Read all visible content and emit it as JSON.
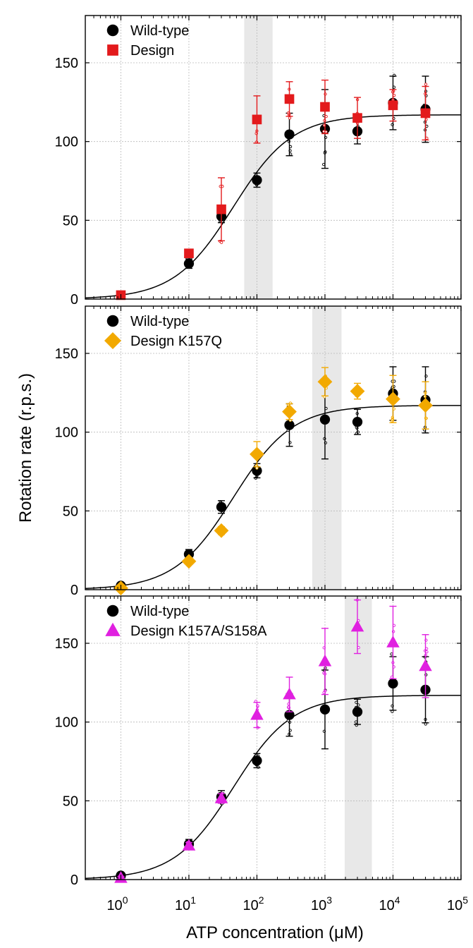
{
  "chart_data": {
    "type": "scatter",
    "xlabel": "ATP concentration (μM)",
    "xscale": "log",
    "xlim": [
      0.3,
      100000
    ],
    "x_tick_labels": [
      {
        "base": "10",
        "exp": "0",
        "value": 1
      },
      {
        "base": "10",
        "exp": "1",
        "value": 10
      },
      {
        "base": "10",
        "exp": "2",
        "value": 100
      },
      {
        "base": "10",
        "exp": "3",
        "value": 1000
      },
      {
        "base": "10",
        "exp": "4",
        "value": 10000
      },
      {
        "base": "10",
        "exp": "5",
        "value": 100000
      }
    ],
    "ylabel": "Rotation rate (r.p.s.)",
    "ylim": [
      0,
      180
    ],
    "y_ticks": [
      0,
      50,
      100,
      150
    ],
    "colors": {
      "wildtype": "#000000",
      "design": "#e31a1c",
      "k157q": "#f2a900",
      "k157a": "#e020e0",
      "shade": "#e8e8e8"
    },
    "fit": {
      "label": "Wild-type fit",
      "vmax": 117,
      "km": 45
    },
    "panels": [
      {
        "legend": [
          {
            "label": "Wild-type",
            "marker": "circle",
            "color": "#000000"
          },
          {
            "label": "Design",
            "marker": "square",
            "color": "#e31a1c"
          }
        ],
        "shaded_range": [
          65,
          170
        ],
        "series": [
          {
            "name": "Wild-type",
            "marker": "circle",
            "color": "#000000",
            "x": [
              10,
              30,
              100,
              300,
              1000,
              3000,
              10000,
              30000
            ],
            "y": [
              22.5,
              52.5,
              75.5,
              104.5,
              108,
              106.5,
              124.5,
              120.5
            ],
            "err": [
              3,
              4,
              4.5,
              13.5,
              25,
              8,
              17,
              21
            ]
          },
          {
            "name": "Design",
            "marker": "square",
            "color": "#e31a1c",
            "x": [
              1,
              10,
              30,
              100,
              300,
              1000,
              3000,
              10000,
              30000
            ],
            "y": [
              2.5,
              29,
              57,
              114,
              127,
              122,
              115,
              123,
              118
            ],
            "err": [
              1.5,
              2,
              20,
              15,
              11,
              17,
              13,
              10,
              17
            ]
          }
        ]
      },
      {
        "legend": [
          {
            "label": "Wild-type",
            "marker": "circle",
            "color": "#000000"
          },
          {
            "label": "Design K157Q",
            "marker": "diamond",
            "color": "#f2a900"
          }
        ],
        "shaded_range": [
          650,
          1750
        ],
        "series": [
          {
            "name": "Wild-type",
            "marker": "circle",
            "color": "#000000",
            "x": [
              1,
              10,
              30,
              100,
              300,
              1000,
              3000,
              10000,
              30000
            ],
            "y": [
              2.5,
              22.5,
              52.5,
              75.5,
              104.5,
              108,
              106.5,
              124.5,
              120.5
            ],
            "err": [
              1.5,
              3,
              4,
              4.5,
              13.5,
              25,
              8,
              17,
              21
            ]
          },
          {
            "name": "Design K157Q",
            "marker": "diamond",
            "color": "#f2a900",
            "x": [
              1,
              10,
              30,
              100,
              300,
              1000,
              3000,
              10000,
              30000
            ],
            "y": [
              1,
              18,
              37.5,
              86,
              113,
              132,
              126,
              121,
              117
            ],
            "err": [
              1,
              2,
              2.5,
              8,
              5,
              9,
              5,
              15,
              15
            ]
          }
        ]
      },
      {
        "legend": [
          {
            "label": "Wild-type",
            "marker": "circle",
            "color": "#000000"
          },
          {
            "label": "Design K157A/S158A",
            "marker": "triangle",
            "color": "#e020e0"
          }
        ],
        "shaded_range": [
          1950,
          4900
        ],
        "series": [
          {
            "name": "Wild-type",
            "marker": "circle",
            "color": "#000000",
            "x": [
              1,
              10,
              30,
              100,
              300,
              1000,
              3000,
              10000,
              30000
            ],
            "y": [
              2.5,
              22.5,
              52.5,
              75.5,
              104.5,
              108,
              106.5,
              124.5,
              120.5
            ],
            "err": [
              1.5,
              3,
              4,
              4.5,
              13.5,
              25,
              8,
              17,
              21
            ]
          },
          {
            "name": "Design K157A/S158A",
            "marker": "triangle",
            "color": "#e020e0",
            "x": [
              1,
              10,
              30,
              100,
              300,
              1000,
              3000,
              10000,
              30000
            ],
            "y": [
              1,
              21.5,
              51.5,
              104.5,
              117.5,
              138.5,
              160.5,
              150.5,
              135.5
            ],
            "err": [
              1,
              2,
              3,
              8,
              11,
              21,
              17,
              23,
              20
            ]
          }
        ]
      }
    ]
  }
}
